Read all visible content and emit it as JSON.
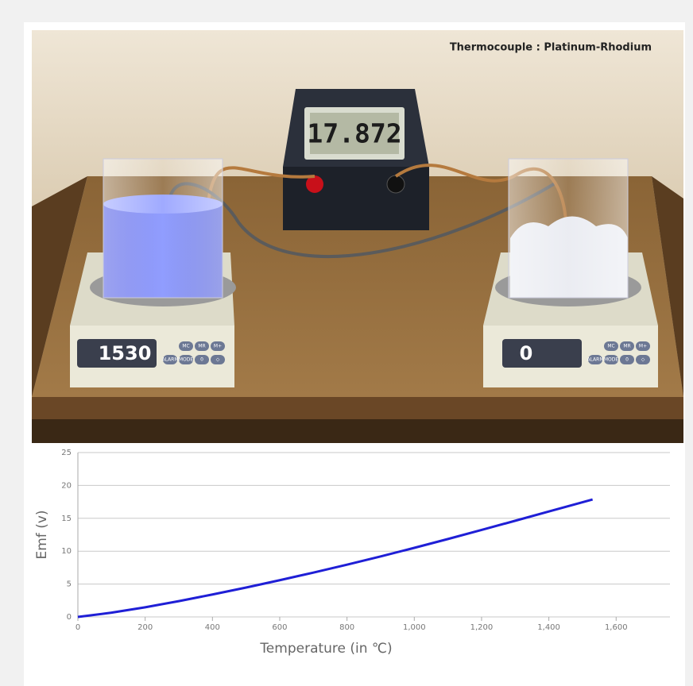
{
  "scene": {
    "title": "Thermocouple : Platinum-Rhodium",
    "voltmeter": "17.872",
    "hot_display": "1530",
    "cold_display": "0",
    "buttons": [
      "MC",
      "MR",
      "M+",
      "ALARM",
      "MODE",
      "0",
      "◇"
    ]
  },
  "chart_data": {
    "type": "line",
    "y_label": "Emf (v)",
    "x_label": "Temperature (in ℃)",
    "x": [
      0,
      100,
      200,
      300,
      400,
      500,
      600,
      700,
      800,
      900,
      1000,
      1100,
      1200,
      1300,
      1400,
      1500,
      1530
    ],
    "series": [
      {
        "color": "#1f1fd6",
        "values": [
          0,
          0.647,
          1.469,
          2.401,
          3.408,
          4.471,
          5.583,
          6.743,
          7.95,
          9.205,
          10.506,
          11.85,
          13.228,
          14.629,
          16.035,
          17.445,
          17.872
        ]
      }
    ],
    "xlim": [
      0,
      1760
    ],
    "ylim": [
      0,
      25
    ],
    "xticks": [
      0,
      200,
      400,
      600,
      800,
      {
        "value": 1000,
        "label": "1,000"
      },
      {
        "value": 1200,
        "label": "1,200"
      },
      {
        "value": 1400,
        "label": "1,400"
      },
      {
        "value": 1600,
        "label": "1,600"
      }
    ],
    "yticks": [
      0,
      5,
      10,
      15,
      20,
      25
    ],
    "grid": true
  }
}
